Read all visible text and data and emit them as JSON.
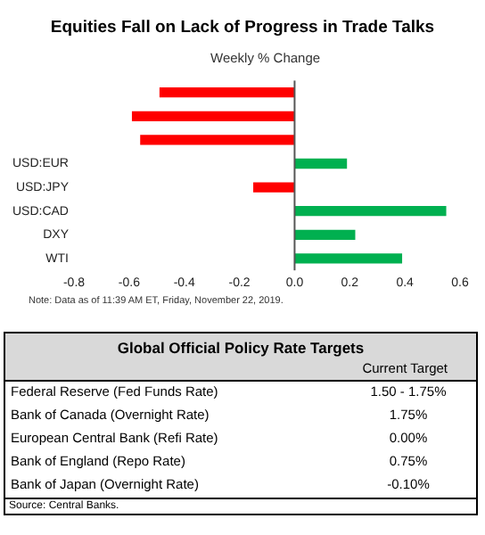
{
  "chart_data": [
    {
      "type": "bar",
      "orientation": "horizontal",
      "title": "Equities Fall on Lack of Progress in Trade Talks",
      "xlabel": "Weekly % Change",
      "categories": [
        null,
        null,
        null,
        "USD:EUR",
        "USD:JPY",
        "USD:CAD",
        "DXY",
        "WTI"
      ],
      "values": [
        -0.49,
        -0.59,
        -0.56,
        0.19,
        -0.15,
        0.55,
        0.22,
        0.39
      ],
      "colors": [
        "#ff0000",
        "#ff0000",
        "#ff0000",
        "#00b050",
        "#ff0000",
        "#00b050",
        "#00b050",
        "#00b050"
      ],
      "xlim": [
        -0.8,
        0.6
      ],
      "xticks": [
        -0.8,
        -0.6,
        -0.4,
        -0.2,
        {
          "value": 0,
          "label": "0.0"
        },
        0.2,
        0.4,
        0.6
      ],
      "legend": false,
      "ref_lines": [
        {
          "axis": "x",
          "value": 0,
          "color": "#555555"
        }
      ],
      "annotations": [
        "Note: Data as of 11:39 AM ET, Friday, November 22, 2019."
      ]
    },
    {
      "type": "other",
      "title": "Global Official Policy Rate Targets",
      "annotations": [
        "Current Target",
        "Federal Reserve (Fed Funds Rate)",
        "1.50 - 1.75%",
        "Bank of Canada (Overnight Rate)",
        "1.75%",
        "European Central Bank (Refi Rate)",
        "0.00%",
        "Bank of England (Repo Rate)",
        "0.75%",
        "Bank of Japan (Overnight Rate)",
        "-0.10%",
        "Source: Central Banks."
      ]
    }
  ]
}
